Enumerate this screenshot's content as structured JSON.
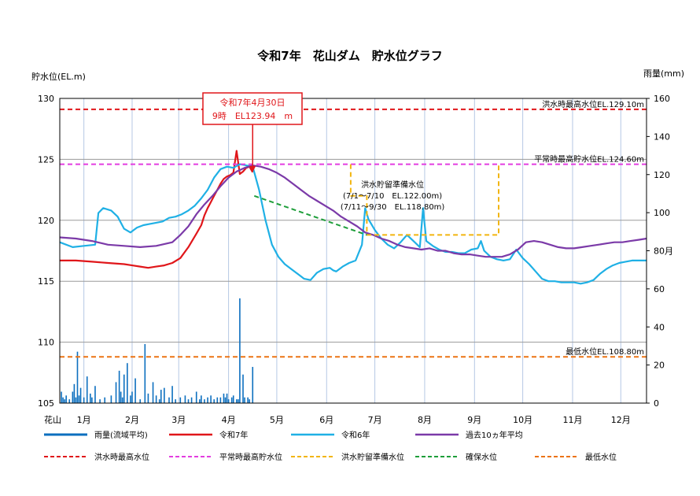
{
  "chart_data": {
    "type": "line",
    "title": "令和7年　花山ダム　貯水位グラフ",
    "ylabel_left": "貯水位(EL.m)",
    "ylabel_right": "雨量(mm)",
    "station_label": "花山",
    "ylim_left": [
      105,
      130
    ],
    "yticks_left": [
      105,
      110,
      115,
      120,
      125,
      130
    ],
    "ylim_right": [
      0,
      160
    ],
    "yticks_right": [
      0,
      20,
      40,
      60,
      80,
      100,
      120,
      140,
      160
    ],
    "right_tick_labels": [
      "0",
      "20",
      "40",
      "60",
      "80月",
      "100",
      "120",
      "140",
      "160"
    ],
    "xlim": [
      0,
      365
    ],
    "months": [
      "1月",
      "2月",
      "3月",
      "4月",
      "5月",
      "6月",
      "7月",
      "8月",
      "9月",
      "10月",
      "11月",
      "12月"
    ],
    "grid": true,
    "legend_placement": "bottom",
    "callout": {
      "line1": "令和7年4月30日",
      "line2": "9時　EL123.94　m",
      "day": 120,
      "value": 123.94,
      "color": "#e0161a"
    },
    "annotations": [
      {
        "text": "洪水時最高水位EL.129.10m",
        "value": 129.1
      },
      {
        "text": "平常時最高貯水位EL.124.60m",
        "value": 124.6
      },
      {
        "text": "最低水位EL.108.80m",
        "value": 108.8
      }
    ],
    "flood_prep_note": [
      "洪水貯留準備水位",
      "(7/1～7/10　EL.122.00m)",
      "(7/11～9/30　EL.118.80m)"
    ],
    "series": [
      {
        "name": "令和7年",
        "color": "#e0161a",
        "kind": "line",
        "x": [
          0,
          10,
          20,
          30,
          40,
          45,
          50,
          55,
          60,
          65,
          70,
          75,
          80,
          85,
          88,
          90,
          92,
          94,
          96,
          98,
          100,
          102,
          104,
          106,
          108,
          110,
          112,
          114,
          116,
          118,
          120
        ],
        "y": [
          116.7,
          116.7,
          116.6,
          116.5,
          116.4,
          116.3,
          116.2,
          116.1,
          116.2,
          116.3,
          116.5,
          116.9,
          117.8,
          118.9,
          119.6,
          120.4,
          121.0,
          121.5,
          122.0,
          122.5,
          123.0,
          123.4,
          123.6,
          123.7,
          123.9,
          125.7,
          123.8,
          124.0,
          124.3,
          124.4,
          123.94
        ]
      },
      {
        "name": "令和6年",
        "color": "#1fb0e5",
        "kind": "line",
        "x": [
          0,
          8,
          15,
          22,
          24,
          27,
          32,
          36,
          40,
          44,
          48,
          52,
          56,
          60,
          64,
          68,
          72,
          76,
          80,
          84,
          88,
          92,
          96,
          100,
          104,
          108,
          112,
          116,
          120,
          124,
          128,
          132,
          136,
          140,
          144,
          148,
          152,
          156,
          160,
          164,
          168,
          170,
          172,
          176,
          180,
          184,
          188,
          190,
          192,
          196,
          200,
          204,
          208,
          212,
          216,
          220,
          224,
          226,
          228,
          232,
          236,
          240,
          244,
          248,
          252,
          256,
          260,
          262,
          264,
          268,
          272,
          276,
          280,
          284,
          288,
          292,
          296,
          300,
          304,
          308,
          312,
          316,
          320,
          324,
          328,
          332,
          336,
          340,
          344,
          348,
          352,
          356,
          360,
          365
        ],
        "y": [
          118.2,
          117.8,
          117.9,
          118.0,
          120.6,
          121.0,
          120.8,
          120.3,
          119.3,
          119.0,
          119.4,
          119.6,
          119.7,
          119.8,
          119.9,
          120.2,
          120.3,
          120.5,
          120.8,
          121.2,
          121.8,
          122.5,
          123.5,
          124.2,
          124.4,
          124.3,
          124.6,
          124.5,
          124.4,
          122.5,
          120.0,
          118.0,
          117.0,
          116.4,
          116.0,
          115.6,
          115.2,
          115.1,
          115.7,
          116.0,
          116.1,
          115.9,
          115.8,
          116.2,
          116.5,
          116.7,
          118.0,
          121.0,
          120.1,
          119.2,
          118.5,
          118.0,
          117.7,
          118.2,
          118.8,
          118.3,
          117.8,
          121.0,
          118.3,
          117.9,
          117.6,
          117.4,
          117.4,
          117.3,
          117.3,
          117.6,
          117.7,
          118.3,
          117.5,
          117.0,
          116.8,
          116.7,
          116.8,
          117.6,
          116.9,
          116.4,
          115.8,
          115.2,
          115.0,
          115.0,
          114.9,
          114.9,
          114.9,
          114.8,
          114.9,
          115.1,
          115.6,
          116.0,
          116.3,
          116.5,
          116.6,
          116.7,
          116.7,
          116.7
        ]
      },
      {
        "name": "過去10ヵ年平均",
        "color": "#7b3aa8",
        "kind": "line",
        "x": [
          0,
          10,
          20,
          30,
          40,
          50,
          60,
          70,
          75,
          80,
          85,
          90,
          95,
          100,
          105,
          110,
          115,
          120,
          125,
          130,
          135,
          140,
          145,
          150,
          155,
          160,
          165,
          170,
          175,
          180,
          185,
          190,
          195,
          200,
          205,
          210,
          215,
          220,
          225,
          230,
          235,
          240,
          245,
          250,
          255,
          260,
          265,
          270,
          275,
          280,
          285,
          290,
          295,
          300,
          305,
          310,
          315,
          320,
          325,
          330,
          335,
          340,
          345,
          350,
          355,
          360,
          365
        ],
        "y": [
          118.6,
          118.5,
          118.3,
          118.0,
          117.9,
          117.8,
          117.9,
          118.2,
          118.8,
          119.5,
          120.5,
          121.3,
          122.0,
          122.8,
          123.5,
          124.0,
          124.3,
          124.5,
          124.4,
          124.2,
          123.9,
          123.5,
          123.0,
          122.5,
          122.0,
          121.6,
          121.2,
          120.8,
          120.3,
          119.9,
          119.5,
          119.0,
          118.8,
          118.5,
          118.3,
          118.0,
          117.8,
          117.7,
          117.6,
          117.7,
          117.5,
          117.5,
          117.3,
          117.2,
          117.2,
          117.1,
          117.0,
          117.0,
          117.0,
          117.2,
          117.6,
          118.2,
          118.3,
          118.2,
          118.0,
          117.8,
          117.7,
          117.7,
          117.8,
          117.9,
          118.0,
          118.1,
          118.2,
          118.2,
          118.3,
          118.4,
          118.5
        ]
      },
      {
        "name": "雨量(流域平均)",
        "color": "#0c6fbf",
        "kind": "bar",
        "axis": "right",
        "x": [
          1,
          2,
          3,
          4,
          6,
          8,
          9,
          10,
          11,
          12,
          13,
          15,
          17,
          19,
          20,
          22,
          25,
          28,
          32,
          35,
          37,
          38,
          39,
          40,
          42,
          44,
          45,
          47,
          50,
          53,
          55,
          58,
          60,
          62,
          63,
          65,
          68,
          70,
          72,
          75,
          78,
          80,
          82,
          85,
          87,
          88,
          90,
          92,
          94,
          96,
          98,
          100,
          102,
          103,
          104,
          105,
          107,
          108,
          110,
          111,
          112,
          114,
          115,
          117,
          118,
          120
        ],
        "values": [
          6,
          3,
          2,
          4,
          2,
          6,
          10,
          3,
          27,
          4,
          8,
          3,
          14,
          5,
          3,
          9,
          2,
          3,
          4,
          11,
          17,
          6,
          3,
          15,
          21,
          4,
          6,
          13,
          2,
          31,
          5,
          11,
          4,
          2,
          7,
          8,
          3,
          9,
          2,
          3,
          4,
          2,
          3,
          6,
          2,
          4,
          2,
          3,
          4,
          2,
          3,
          3,
          5,
          3,
          5,
          2,
          3,
          4,
          2,
          2,
          55,
          15,
          3,
          3,
          2,
          19
        ]
      },
      {
        "name": "洪水時最高水位",
        "color": "#e0161a",
        "kind": "dashed",
        "x": [
          0,
          365
        ],
        "y": [
          129.1,
          129.1
        ]
      },
      {
        "name": "平常時最高貯水位",
        "color": "#e33de0",
        "kind": "dashed",
        "x": [
          0,
          181,
          273,
          365
        ],
        "y": [
          124.6,
          124.6,
          124.6,
          124.6
        ]
      },
      {
        "name": "洪水貯留準備水位",
        "color": "#f2b50f",
        "kind": "dashed",
        "x": [
          181,
          181,
          191,
          191,
          273,
          273
        ],
        "y": [
          124.6,
          122.0,
          122.0,
          118.8,
          118.8,
          124.6
        ]
      },
      {
        "name": "確保水位",
        "color": "#1e9e3a",
        "kind": "dashed",
        "x": [
          121,
          191
        ],
        "y": [
          122.0,
          118.8
        ]
      },
      {
        "name": "最低水位",
        "color": "#ec7314",
        "kind": "dashed",
        "x": [
          0,
          365
        ],
        "y": [
          108.8,
          108.8
        ]
      }
    ]
  }
}
